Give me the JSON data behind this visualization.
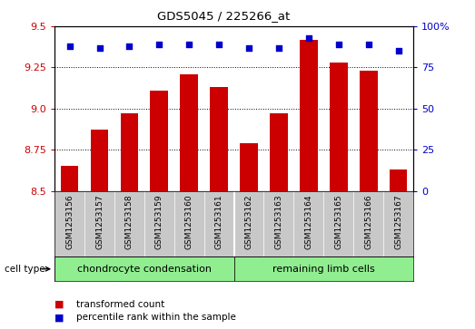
{
  "title": "GDS5045 / 225266_at",
  "samples": [
    "GSM1253156",
    "GSM1253157",
    "GSM1253158",
    "GSM1253159",
    "GSM1253160",
    "GSM1253161",
    "GSM1253162",
    "GSM1253163",
    "GSM1253164",
    "GSM1253165",
    "GSM1253166",
    "GSM1253167"
  ],
  "transformed_count": [
    8.65,
    8.87,
    8.97,
    9.11,
    9.21,
    9.13,
    8.79,
    8.97,
    9.42,
    9.28,
    9.23,
    8.63
  ],
  "percentile_rank": [
    88,
    87,
    88,
    89,
    89,
    89,
    87,
    87,
    93,
    89,
    89,
    85
  ],
  "bar_color": "#cc0000",
  "dot_color": "#0000cc",
  "ylim_left": [
    8.5,
    9.5
  ],
  "ylim_right": [
    0,
    100
  ],
  "yticks_left": [
    8.5,
    8.75,
    9.0,
    9.25,
    9.5
  ],
  "yticks_right": [
    0,
    25,
    50,
    75,
    100
  ],
  "ytick_labels_right": [
    "0",
    "25",
    "50",
    "75",
    "100%"
  ],
  "grid_values": [
    8.75,
    9.0,
    9.25
  ],
  "cell_type_groups": [
    {
      "label": "chondrocyte condensation",
      "start": 0,
      "end": 5,
      "color": "#90ee90"
    },
    {
      "label": "remaining limb cells",
      "start": 6,
      "end": 11,
      "color": "#90ee90"
    }
  ],
  "cell_type_label": "cell type",
  "legend_items": [
    {
      "color": "#cc0000",
      "label": "transformed count"
    },
    {
      "color": "#0000cc",
      "label": "percentile rank within the sample"
    }
  ],
  "background_color": "#c8c8c8",
  "plot_bg": "#ffffff",
  "bar_bottom": 8.5,
  "bar_width": 0.6
}
